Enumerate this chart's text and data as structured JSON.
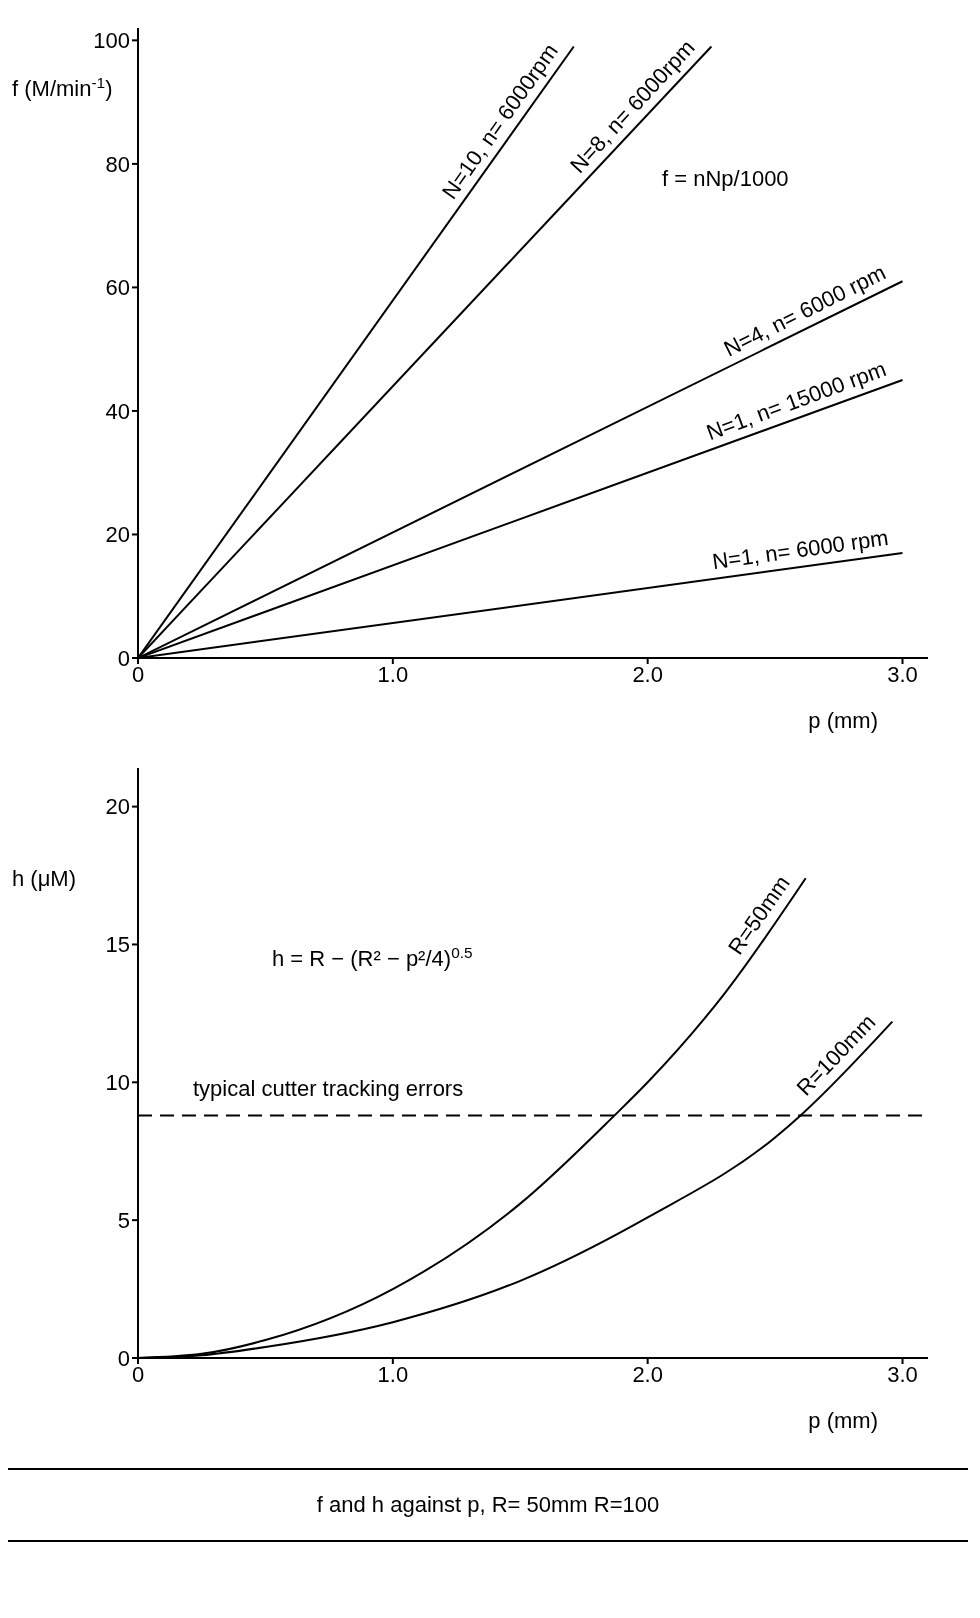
{
  "chart_data": [
    {
      "type": "line",
      "ylabel": "f (M/min$^{-1}$)",
      "xlabel": "p (mm)",
      "xlim": [
        0,
        3.1
      ],
      "ylim": [
        0,
        102
      ],
      "xticks": [
        0,
        {
          "value": 1,
          "label": "1.0"
        },
        {
          "value": 2,
          "label": "2.0"
        },
        {
          "value": 3,
          "label": "3.0"
        }
      ],
      "yticks": [
        0,
        20,
        40,
        60,
        80,
        100
      ],
      "marker": "none",
      "line_style": "solid",
      "annotations": [
        "f = nNp/1000"
      ],
      "series": [
        {
          "name": "N=10, n= 6000rpm",
          "color": "#000000",
          "x": [
            0,
            1.71
          ],
          "values": [
            0,
            99
          ]
        },
        {
          "name": "N=8, n= 6000rpm",
          "color": "#000000",
          "x": [
            0,
            2.25
          ],
          "values": [
            0,
            99
          ]
        },
        {
          "name": "N=4, n= 6000 rpm",
          "color": "#000000",
          "x": [
            0,
            3.0
          ],
          "values": [
            0,
            61
          ]
        },
        {
          "name": "N=1, n= 15000 rpm",
          "color": "#000000",
          "x": [
            0,
            3.0
          ],
          "values": [
            0,
            45
          ]
        },
        {
          "name": "N=1, n= 6000 rpm",
          "color": "#000000",
          "x": [
            0,
            3.0
          ],
          "values": [
            0,
            17
          ]
        }
      ]
    },
    {
      "type": "line",
      "ylabel": "h (μM)",
      "xlabel": "p (mm)",
      "xlim": [
        0,
        3.1
      ],
      "ylim": [
        0,
        21.4
      ],
      "xticks": [
        0,
        {
          "value": 1,
          "label": "1.0"
        },
        {
          "value": 2,
          "label": "2.0"
        },
        {
          "value": 3,
          "label": "3.0"
        }
      ],
      "yticks": [
        0,
        5,
        10,
        15,
        20
      ],
      "marker": "none",
      "line_style": "solid",
      "annotations": [
        "h = R − (R² − p²/4)$^{0.5}$",
        "f and h against p, R= 50mm R=100"
      ],
      "ref_lines": [
        {
          "axis": "y",
          "value": 8.8,
          "label": "typical cutter tracking errors",
          "line_style": "dashed",
          "color": "#000000"
        }
      ],
      "series": [
        {
          "name": "R=50mm",
          "color": "#000000",
          "x": [
            0,
            0.25,
            0.5,
            1.0,
            1.5,
            1.87,
            2.0,
            2.3,
            2.62
          ],
          "values": [
            0,
            0.15,
            0.65,
            2.5,
            5.6,
            8.8,
            10,
            13.2,
            17.4
          ]
        },
        {
          "name": "R=100mm",
          "color": "#000000",
          "x": [
            0,
            0.25,
            0.5,
            1.0,
            1.5,
            2.0,
            2.5,
            2.6,
            2.96
          ],
          "values": [
            0,
            0.1,
            0.4,
            1.3,
            2.8,
            5.1,
            8.0,
            8.8,
            12.2
          ]
        }
      ]
    }
  ]
}
